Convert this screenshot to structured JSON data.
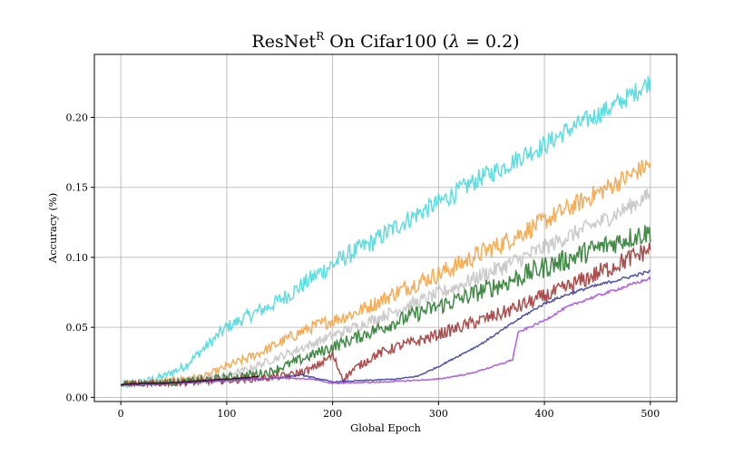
{
  "chart_data": {
    "type": "line",
    "title_main": "ResNet",
    "title_sup": "R",
    "title_rest": " On Cifar100 (",
    "title_lambda": "λ",
    "title_eq": " = 0.2)",
    "xlabel": "Global Epoch",
    "ylabel": "Accuracy (%)",
    "xlim": [
      -25,
      525
    ],
    "ylim": [
      -0.003,
      0.245
    ],
    "xticks": [
      0,
      100,
      200,
      300,
      400,
      500
    ],
    "yticks": [
      0.0,
      0.05,
      0.1,
      0.15,
      0.2
    ],
    "xtick_labels": [
      "0",
      "100",
      "200",
      "300",
      "400",
      "500"
    ],
    "ytick_labels": [
      "0.00",
      "0.05",
      "0.10",
      "0.15",
      "0.20"
    ],
    "grid": true,
    "legend": "none",
    "series": [
      {
        "name": "cyan",
        "color": "#4dd9dc",
        "x": [
          0,
          20,
          40,
          60,
          80,
          100,
          120,
          140,
          160,
          180,
          200,
          220,
          240,
          260,
          280,
          300,
          320,
          340,
          360,
          380,
          400,
          420,
          440,
          460,
          480,
          500
        ],
        "y": [
          0.009,
          0.011,
          0.015,
          0.022,
          0.036,
          0.05,
          0.058,
          0.065,
          0.074,
          0.085,
          0.095,
          0.104,
          0.112,
          0.122,
          0.131,
          0.139,
          0.148,
          0.157,
          0.164,
          0.173,
          0.18,
          0.19,
          0.198,
          0.206,
          0.215,
          0.226
        ],
        "noise": 0.007
      },
      {
        "name": "orange",
        "color": "#f5a444",
        "x": [
          0,
          40,
          80,
          100,
          120,
          140,
          160,
          180,
          200,
          220,
          240,
          260,
          280,
          300,
          320,
          340,
          360,
          380,
          400,
          420,
          440,
          460,
          480,
          500
        ],
        "y": [
          0.009,
          0.011,
          0.015,
          0.022,
          0.028,
          0.035,
          0.043,
          0.05,
          0.055,
          0.06,
          0.067,
          0.075,
          0.082,
          0.088,
          0.095,
          0.103,
          0.11,
          0.118,
          0.126,
          0.134,
          0.142,
          0.15,
          0.158,
          0.167
        ],
        "noise": 0.007
      },
      {
        "name": "gray",
        "color": "#c4c4c4",
        "x": [
          0,
          60,
          100,
          120,
          140,
          160,
          180,
          200,
          220,
          240,
          260,
          280,
          300,
          320,
          340,
          360,
          380,
          400,
          420,
          440,
          460,
          480,
          500
        ],
        "y": [
          0.009,
          0.012,
          0.016,
          0.02,
          0.026,
          0.032,
          0.038,
          0.044,
          0.05,
          0.056,
          0.062,
          0.068,
          0.074,
          0.08,
          0.087,
          0.093,
          0.1,
          0.107,
          0.114,
          0.121,
          0.128,
          0.136,
          0.145
        ],
        "noise": 0.006
      },
      {
        "name": "green",
        "color": "#2e7d32",
        "x": [
          0,
          60,
          100,
          140,
          160,
          180,
          200,
          220,
          240,
          260,
          280,
          300,
          320,
          340,
          360,
          380,
          400,
          420,
          440,
          460,
          480,
          500
        ],
        "y": [
          0.009,
          0.011,
          0.014,
          0.018,
          0.024,
          0.03,
          0.036,
          0.042,
          0.048,
          0.054,
          0.06,
          0.065,
          0.07,
          0.076,
          0.081,
          0.087,
          0.093,
          0.098,
          0.104,
          0.109,
          0.114,
          0.118
        ],
        "noise": 0.008
      },
      {
        "name": "darkred",
        "color": "#a23b3b",
        "x": [
          0,
          100,
          140,
          160,
          180,
          200,
          210,
          220,
          240,
          260,
          280,
          300,
          320,
          340,
          360,
          380,
          400,
          420,
          440,
          460,
          480,
          500
        ],
        "y": [
          0.009,
          0.012,
          0.014,
          0.016,
          0.02,
          0.03,
          0.013,
          0.02,
          0.03,
          0.036,
          0.04,
          0.045,
          0.05,
          0.055,
          0.06,
          0.066,
          0.072,
          0.078,
          0.085,
          0.092,
          0.099,
          0.106
        ],
        "noise": 0.007
      },
      {
        "name": "navy",
        "color": "#3b3f9e",
        "x": [
          0,
          50,
          100,
          150,
          170,
          200,
          230,
          260,
          280,
          300,
          320,
          340,
          360,
          380,
          400,
          420,
          440,
          460,
          480,
          500
        ],
        "y": [
          0.009,
          0.01,
          0.012,
          0.014,
          0.016,
          0.011,
          0.012,
          0.013,
          0.015,
          0.022,
          0.03,
          0.038,
          0.048,
          0.058,
          0.067,
          0.073,
          0.078,
          0.082,
          0.086,
          0.09
        ],
        "noise": 0.0012
      },
      {
        "name": "purple",
        "color": "#a64ee0",
        "x": [
          0,
          50,
          100,
          150,
          180,
          200,
          250,
          300,
          330,
          360,
          370,
          375,
          380,
          400,
          420,
          440,
          460,
          480,
          500
        ],
        "y": [
          0.009,
          0.01,
          0.012,
          0.014,
          0.013,
          0.01,
          0.011,
          0.013,
          0.017,
          0.024,
          0.027,
          0.046,
          0.048,
          0.055,
          0.064,
          0.07,
          0.075,
          0.08,
          0.085
        ],
        "noise": 0.0012
      },
      {
        "name": "black",
        "color": "#1a1a1a",
        "x": [
          0,
          20,
          40,
          60,
          80,
          100,
          120,
          130
        ],
        "y": [
          0.009,
          0.01,
          0.01,
          0.011,
          0.012,
          0.013,
          0.014,
          0.015
        ],
        "noise": 0.0008
      }
    ]
  }
}
